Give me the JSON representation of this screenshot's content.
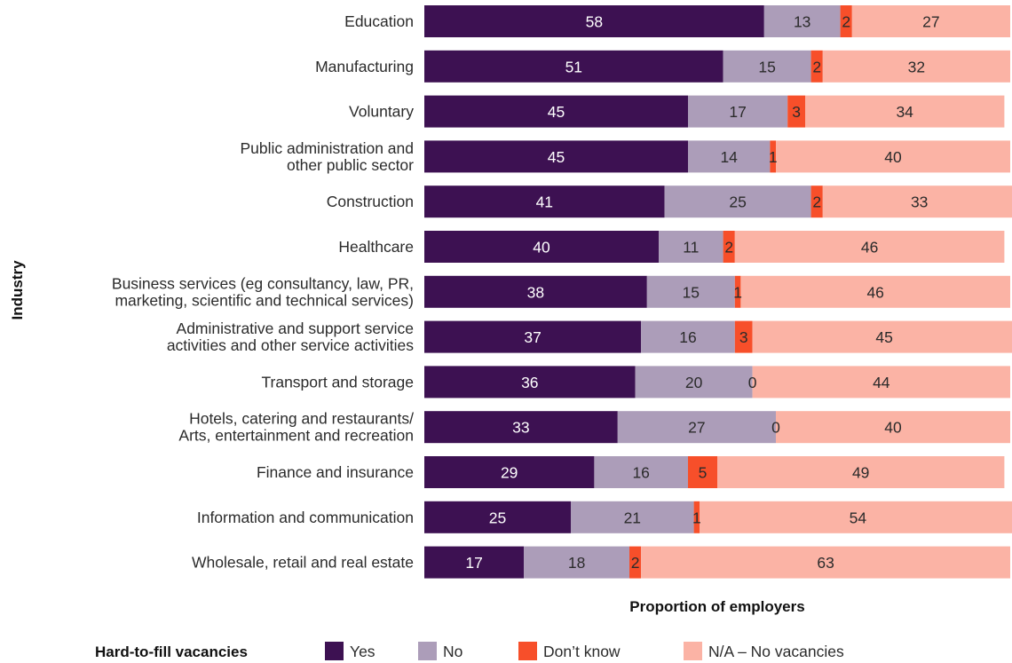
{
  "chart_data": {
    "type": "bar",
    "orientation": "horizontal",
    "stacked": true,
    "categories": [
      [
        "Education"
      ],
      [
        "Manufacturing"
      ],
      [
        "Voluntary"
      ],
      [
        "Public administration and",
        "other public sector"
      ],
      [
        "Construction"
      ],
      [
        "Healthcare"
      ],
      [
        "Business services (eg consultancy, law, PR,",
        "marketing, scientific and technical services)"
      ],
      [
        "Administrative and support service",
        "activities and other service activities"
      ],
      [
        "Transport and storage"
      ],
      [
        "Hotels, catering and restaurants/",
        "Arts, entertainment and recreation"
      ],
      [
        "Finance and insurance"
      ],
      [
        "Information and communication"
      ],
      [
        "Wholesale, retail and real estate"
      ]
    ],
    "series": [
      {
        "name": "Yes",
        "color": "#3d1152",
        "label_color": "#ffffff",
        "values": [
          58,
          51,
          45,
          45,
          41,
          40,
          38,
          37,
          36,
          33,
          29,
          25,
          17
        ]
      },
      {
        "name": "No",
        "color": "#ac9db9",
        "label_color": "#2b2b2b",
        "values": [
          13,
          15,
          17,
          14,
          25,
          11,
          15,
          16,
          20,
          27,
          16,
          21,
          18
        ]
      },
      {
        "name": "Don’t know",
        "color": "#f74f2a",
        "label_color": "#2b2b2b",
        "values": [
          2,
          2,
          3,
          1,
          2,
          2,
          1,
          3,
          0,
          0,
          5,
          1,
          2
        ]
      },
      {
        "name": "N/A – No vacancies",
        "color": "#fbb3a5",
        "label_color": "#2b2b2b",
        "values": [
          27,
          32,
          34,
          40,
          33,
          46,
          46,
          45,
          44,
          40,
          49,
          54,
          63
        ]
      }
    ],
    "xlabel": "Proportion of employers",
    "ylabel": "Industry",
    "xlim": [
      0,
      100
    ],
    "grid": false,
    "legend": {
      "title": "Hard-to-fill vacancies",
      "placement": "bottom"
    }
  }
}
